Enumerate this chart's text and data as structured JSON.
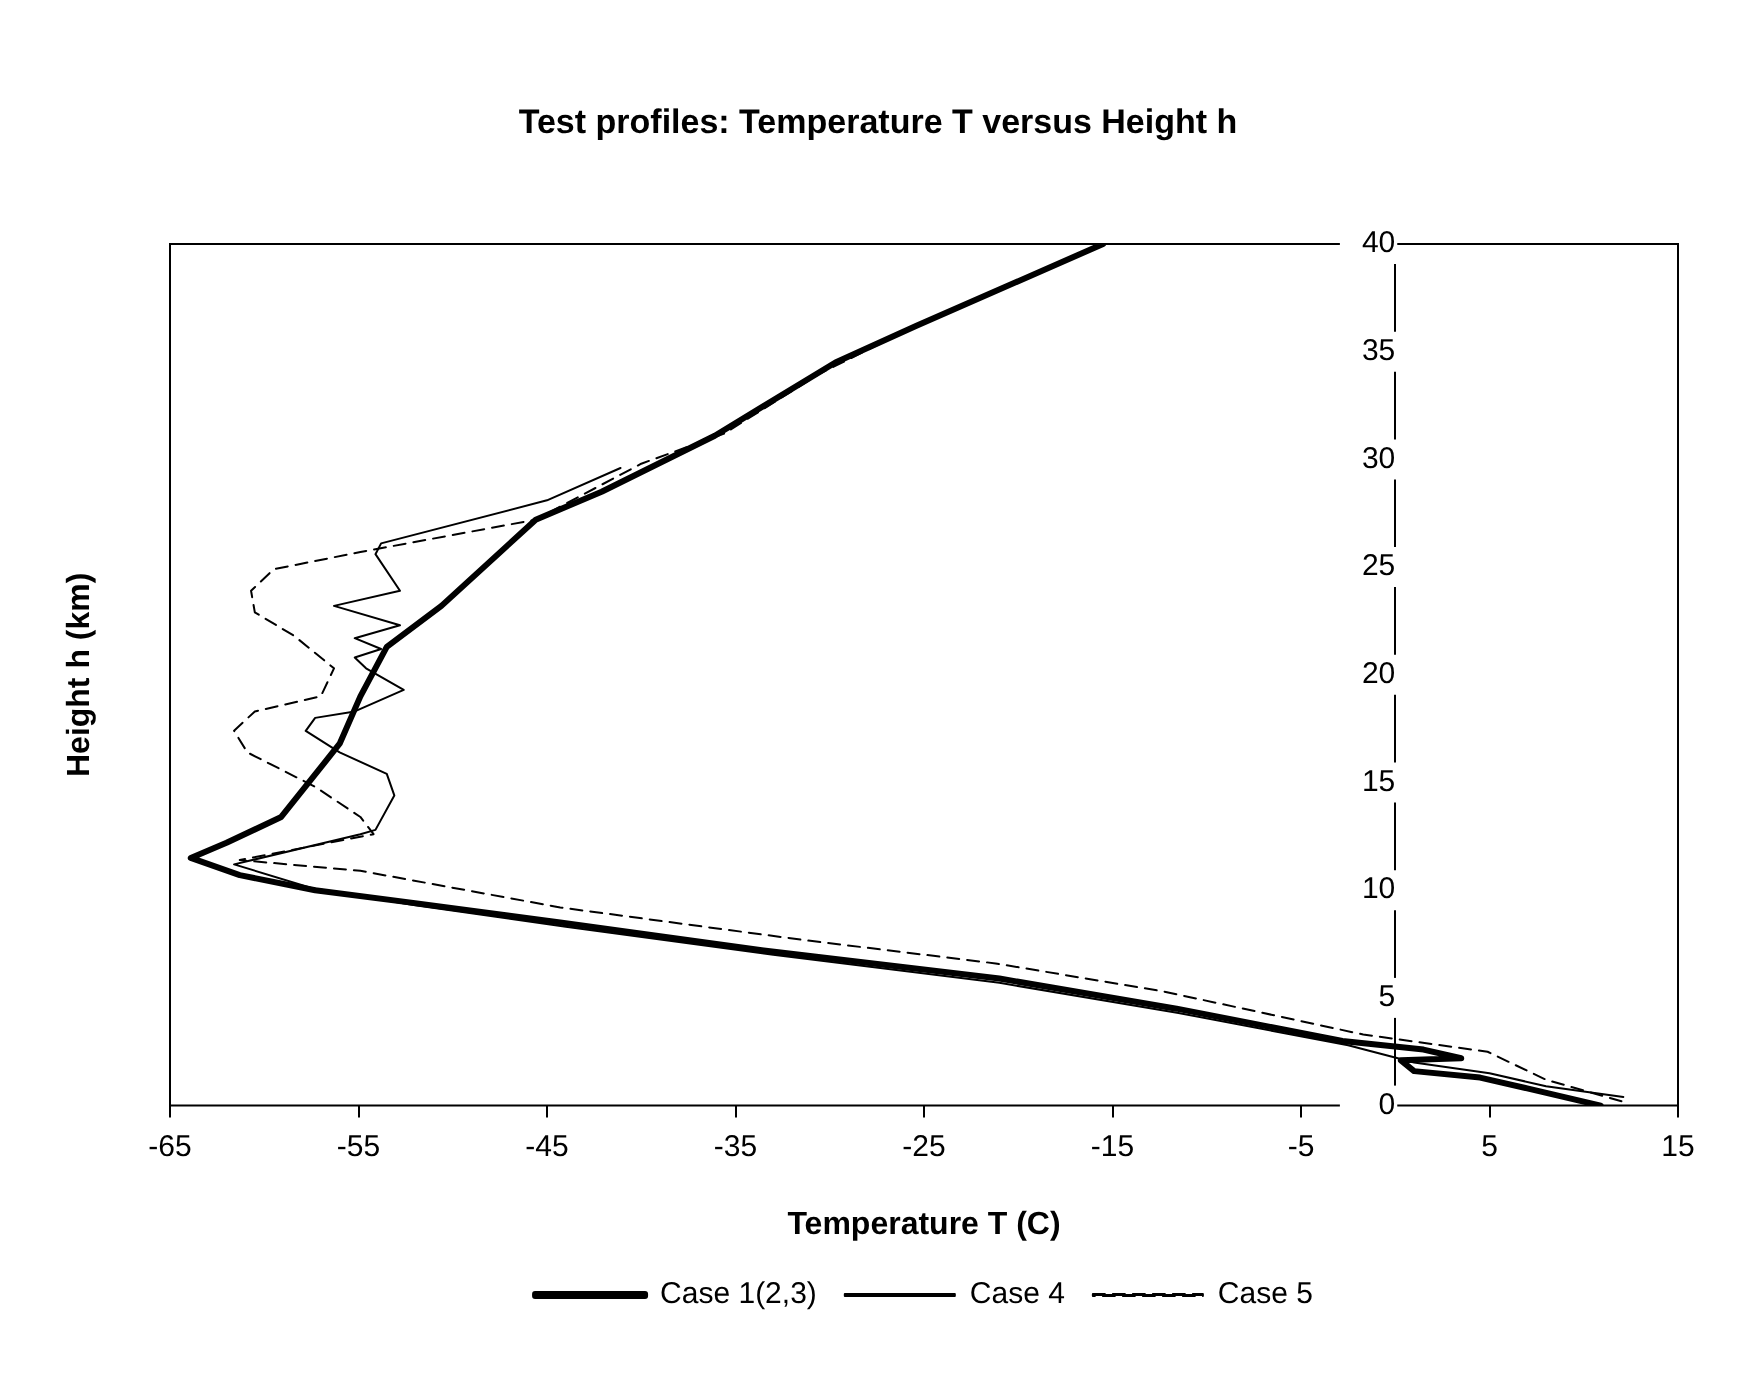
{
  "chart_data": {
    "type": "line",
    "title": "Test profiles: Temperature T versus Height h",
    "xlabel": "Temperature T (C)",
    "ylabel": "Height h (km)",
    "xlim": [
      -65,
      15
    ],
    "xticks": [
      -65,
      -55,
      -45,
      -35,
      -25,
      -15,
      -5,
      5,
      15
    ],
    "ylim": [
      0,
      40
    ],
    "yticks": [
      0,
      5,
      10,
      15,
      20,
      25,
      30,
      35,
      40
    ],
    "grid": false,
    "legend": "bottom",
    "marker": "none",
    "series": [
      {
        "name": "Case 1(2,3)",
        "color": "#000000",
        "line_style": "solid",
        "x": [
          10.9,
          7,
          4.5,
          1,
          0.3,
          3.5,
          1.5,
          -2.8,
          -11.6,
          -21,
          -33.5,
          -44.3,
          -52,
          -57.3,
          -61.3,
          -63.9,
          -62,
          -59.1,
          -56,
          -54.9,
          -53.5,
          -50.6,
          -45.6,
          -42.1,
          -36.1,
          -29.7,
          -25.4,
          -15.5
        ],
        "values": [
          0,
          0.8,
          1.3,
          1.6,
          2.1,
          2.2,
          2.6,
          3.0,
          4.5,
          5.9,
          7.2,
          8.5,
          9.4,
          10.0,
          10.7,
          11.5,
          12.2,
          13.4,
          16.8,
          19.0,
          21.3,
          23.2,
          27.2,
          28.5,
          31.1,
          34.5,
          36.2,
          40
        ]
      },
      {
        "name": "Case 4",
        "color": "#000000",
        "line_style": "solid",
        "x": [
          12.1,
          8,
          5,
          1,
          -2.5,
          -11.5,
          -21,
          -33,
          -44,
          -52,
          -57.5,
          -61.6,
          -54.9,
          -54.1,
          -53.1,
          -53.5,
          -56,
          -57.8,
          -57.3,
          -55.2,
          -52.6,
          -54.6,
          -55.2,
          -53.8,
          -55.2,
          -52.8,
          -56.3,
          -52.8,
          -54.1,
          -53.8,
          -45,
          -41.1
        ],
        "values": [
          0.4,
          0.9,
          1.5,
          2.0,
          2.8,
          4.3,
          5.7,
          7.0,
          8.3,
          9.3,
          10.1,
          11.2,
          12.6,
          12.8,
          14.4,
          15.4,
          16.4,
          17.4,
          18.0,
          18.3,
          19.3,
          20.3,
          20.8,
          21.2,
          21.7,
          22.3,
          23.2,
          23.9,
          25.6,
          26.1,
          28.1,
          29.6
        ]
      },
      {
        "name": "Case 5",
        "color": "#000000",
        "line_style": "dashed",
        "x": [
          12,
          8,
          4.9,
          -1.7,
          -12.3,
          -21.2,
          -31.5,
          -44.3,
          -54.9,
          -61.3,
          -54.2,
          -54.9,
          -57.3,
          -60.9,
          -61.6,
          -60.5,
          -57,
          -56.3,
          -58.4,
          -60.5,
          -60.7,
          -59.5,
          -54.9,
          -45.6,
          -40,
          -35.6,
          -30.5,
          -25.4,
          -15.5
        ],
        "values": [
          0.2,
          1.2,
          2.5,
          3.3,
          5.3,
          6.6,
          7.7,
          9.2,
          10.9,
          11.4,
          12.6,
          13.4,
          14.8,
          16.4,
          17.4,
          18.3,
          19.0,
          20.3,
          21.8,
          22.9,
          23.9,
          24.9,
          25.7,
          27.2,
          29.8,
          31.2,
          34.0,
          36.2,
          40
        ]
      }
    ]
  }
}
